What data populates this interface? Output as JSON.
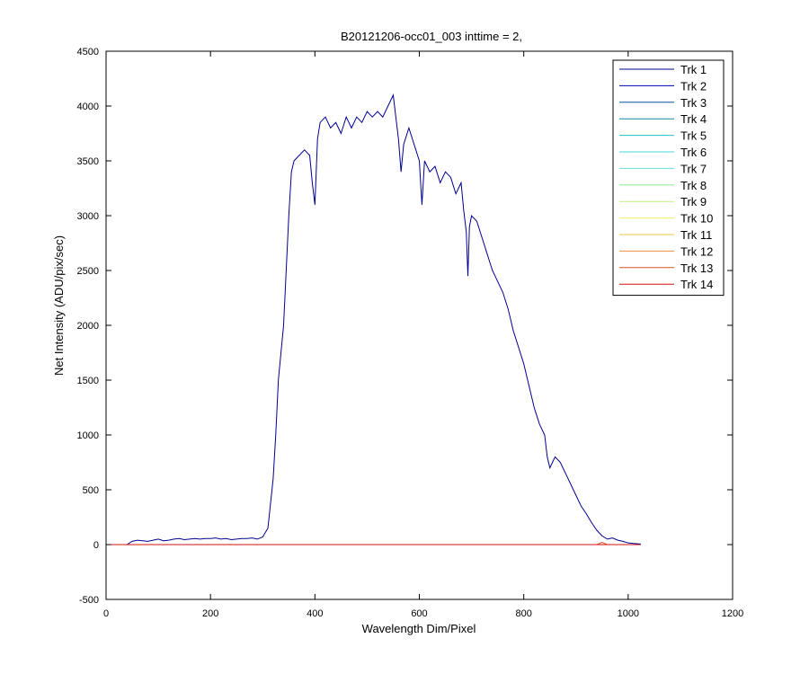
{
  "chart_data": {
    "type": "line",
    "title": "B20121206-occ01_003 inttime = 2,",
    "xlabel": "Wavelength Dim/Pixel",
    "ylabel": "Net Intensity (ADU/pix/sec)",
    "xlim": [
      0,
      1200
    ],
    "xticks": [
      0,
      200,
      400,
      600,
      800,
      1000,
      1200
    ],
    "ylim": [
      -500,
      4500
    ],
    "yticks": [
      -500,
      0,
      500,
      1000,
      1500,
      2000,
      2500,
      3000,
      3500,
      4000,
      4500
    ],
    "legend": "upper right",
    "series": [
      {
        "name": "Trk 1",
        "color": "#00008f",
        "x": [
          40,
          50,
          60,
          70,
          80,
          90,
          100,
          110,
          120,
          130,
          140,
          150,
          160,
          170,
          180,
          190,
          200,
          210,
          220,
          230,
          240,
          250,
          260,
          270,
          280,
          290,
          300,
          310,
          320,
          325,
          330,
          340,
          350,
          355,
          360,
          370,
          380,
          390,
          395,
          400,
          405,
          410,
          420,
          430,
          440,
          450,
          460,
          470,
          480,
          490,
          500,
          510,
          520,
          530,
          540,
          550,
          555,
          560,
          565,
          570,
          580,
          590,
          600,
          605,
          610,
          620,
          630,
          640,
          650,
          660,
          670,
          680,
          685,
          690,
          693,
          696,
          700,
          710,
          720,
          730,
          740,
          750,
          760,
          770,
          780,
          790,
          800,
          810,
          820,
          830,
          840,
          845,
          850,
          860,
          870,
          880,
          890,
          900,
          910,
          920,
          930,
          940,
          950,
          960,
          970,
          980,
          990,
          1000,
          1010,
          1024
        ],
        "values": [
          0,
          30,
          40,
          35,
          30,
          40,
          50,
          35,
          40,
          50,
          55,
          45,
          50,
          55,
          50,
          55,
          55,
          60,
          50,
          55,
          45,
          50,
          55,
          55,
          60,
          50,
          70,
          150,
          600,
          1000,
          1500,
          2000,
          3000,
          3400,
          3500,
          3550,
          3600,
          3550,
          3300,
          3100,
          3700,
          3850,
          3900,
          3800,
          3850,
          3750,
          3900,
          3800,
          3900,
          3850,
          3950,
          3900,
          3950,
          3900,
          4000,
          4100,
          3900,
          3700,
          3400,
          3650,
          3800,
          3650,
          3500,
          3100,
          3500,
          3400,
          3450,
          3300,
          3400,
          3350,
          3200,
          3300,
          3050,
          2850,
          2450,
          2900,
          3000,
          2950,
          2800,
          2650,
          2500,
          2400,
          2300,
          2150,
          1950,
          1800,
          1650,
          1450,
          1250,
          1100,
          1000,
          800,
          700,
          800,
          750,
          650,
          550,
          450,
          350,
          280,
          200,
          130,
          80,
          50,
          60,
          40,
          30,
          15,
          10,
          5
        ]
      },
      {
        "name": "Trk 2",
        "color": "#0000b0",
        "x": [
          0,
          1024
        ],
        "values": [
          0,
          0
        ]
      },
      {
        "name": "Trk 3",
        "color": "#1050a0",
        "x": [
          0,
          1024
        ],
        "values": [
          0,
          0
        ]
      },
      {
        "name": "Trk 4",
        "color": "#108aa0",
        "x": [
          0,
          1024
        ],
        "values": [
          0,
          0
        ]
      },
      {
        "name": "Trk 5",
        "color": "#20c0c8",
        "x": [
          0,
          1024
        ],
        "values": [
          0,
          0
        ]
      },
      {
        "name": "Trk 6",
        "color": "#40d8d8",
        "x": [
          0,
          1024
        ],
        "values": [
          0,
          0
        ]
      },
      {
        "name": "Trk 7",
        "color": "#60e0e0",
        "x": [
          0,
          1024
        ],
        "values": [
          0,
          0
        ]
      },
      {
        "name": "Trk 8",
        "color": "#90e890",
        "x": [
          0,
          1024
        ],
        "values": [
          0,
          0
        ]
      },
      {
        "name": "Trk 9",
        "color": "#c0f080",
        "x": [
          0,
          1024
        ],
        "values": [
          0,
          0
        ]
      },
      {
        "name": "Trk 10",
        "color": "#f0f060",
        "x": [
          0,
          1024
        ],
        "values": [
          0,
          0
        ]
      },
      {
        "name": "Trk 11",
        "color": "#f0c040",
        "x": [
          0,
          1024
        ],
        "values": [
          0,
          0
        ]
      },
      {
        "name": "Trk 12",
        "color": "#f09040",
        "x": [
          0,
          1024
        ],
        "values": [
          0,
          0
        ]
      },
      {
        "name": "Trk 13",
        "color": "#e05020",
        "x": [
          0,
          940,
          950,
          960,
          1024
        ],
        "values": [
          0,
          0,
          20,
          0,
          0
        ]
      },
      {
        "name": "Trk 14",
        "color": "#d01010",
        "x": [
          0,
          1024
        ],
        "values": [
          0,
          0
        ]
      }
    ]
  }
}
